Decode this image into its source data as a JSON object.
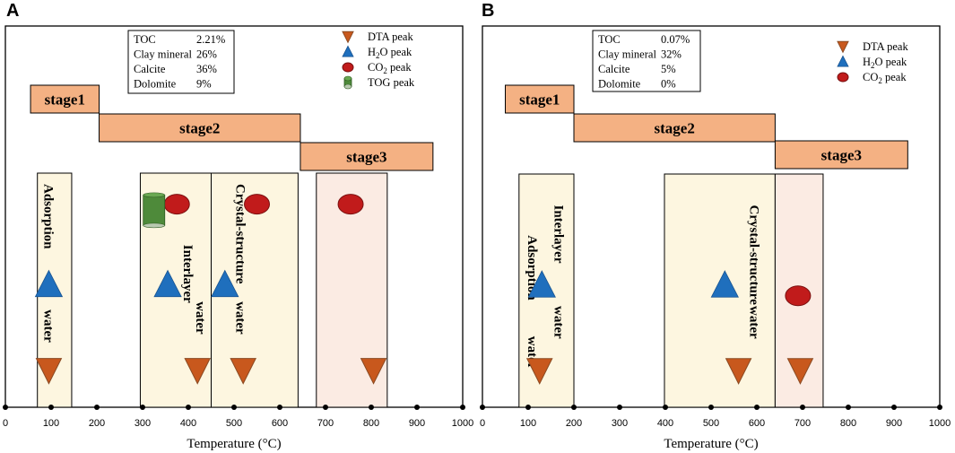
{
  "colors": {
    "dta": "#c8581d",
    "dta_stroke": "#8a4a22",
    "h2o": "#1f6fbd",
    "co2": "#c11b1b",
    "co2_stroke": "#7a1010",
    "tog": "#4e8a3a",
    "stage_fill": "#f4b183",
    "zone_light": "#fdf6e0",
    "zone_pink": "#fbebe3"
  },
  "chart_data": [
    {
      "panel": "A",
      "type": "diagram",
      "xlabel": "Temperature (°C)",
      "xlim": [
        0,
        1000
      ],
      "ticks": [
        "0",
        "100",
        "200",
        "300",
        "400",
        "500",
        "600",
        "700",
        "800",
        "900",
        "1000"
      ],
      "info": [
        {
          "label": "TOC",
          "value": "2.21%"
        },
        {
          "label": "Clay mineral",
          "value": "26%"
        },
        {
          "label": "Calcite",
          "value": "36%"
        },
        {
          "label": "Dolomite",
          "value": "9%"
        }
      ],
      "legend": [
        {
          "symbol": "dta",
          "text": "DTA peak"
        },
        {
          "symbol": "h2o",
          "text": "H",
          "sub": "2",
          "tail": "O peak"
        },
        {
          "symbol": "co2",
          "text": "CO",
          "sub": "2",
          "tail": " peak"
        },
        {
          "symbol": "tog",
          "text": "TOG peak"
        }
      ],
      "stages": [
        {
          "label": "stage1",
          "start": 55,
          "end": 205
        },
        {
          "label": "stage2",
          "start": 205,
          "end": 645
        },
        {
          "label": "stage3",
          "start": 645,
          "end": 935
        }
      ],
      "zones": [
        {
          "start": 70,
          "end": 145,
          "style": "light"
        },
        {
          "start": 295,
          "end": 450,
          "style": "light"
        },
        {
          "start": 450,
          "end": 640,
          "style": "light"
        },
        {
          "start": 680,
          "end": 835,
          "style": "pink"
        }
      ],
      "labels": [
        {
          "temp": 85,
          "level": 0.0,
          "text": "Adsorption"
        },
        {
          "temp": 85,
          "level": 0.62,
          "text": "water"
        },
        {
          "temp": 390,
          "level": 0.3,
          "text": "Interlayer"
        },
        {
          "temp": 418,
          "level": 0.58,
          "text": "water"
        },
        {
          "temp": 505,
          "level": 0.0,
          "text": "Crystal-structure"
        },
        {
          "temp": 505,
          "level": 0.58,
          "text": "water"
        }
      ],
      "markers": [
        {
          "type": "dta",
          "temp": 95,
          "level": 0.92
        },
        {
          "type": "dta",
          "temp": 420,
          "level": 0.92
        },
        {
          "type": "dta",
          "temp": 520,
          "level": 0.92
        },
        {
          "type": "dta",
          "temp": 805,
          "level": 0.92
        },
        {
          "type": "h2o",
          "temp": 95,
          "level": 0.5
        },
        {
          "type": "h2o",
          "temp": 355,
          "level": 0.5
        },
        {
          "type": "h2o",
          "temp": 480,
          "level": 0.5
        },
        {
          "type": "co2",
          "temp": 375,
          "level": 0.1
        },
        {
          "type": "co2",
          "temp": 550,
          "level": 0.1
        },
        {
          "type": "co2",
          "temp": 755,
          "level": 0.1
        },
        {
          "type": "tog",
          "temp": 325,
          "level": 0.13
        }
      ]
    },
    {
      "panel": "B",
      "type": "diagram",
      "xlabel": "Temperature (°C)",
      "xlim": [
        0,
        1000
      ],
      "ticks": [
        "0",
        "100",
        "200",
        "300",
        "400",
        "500",
        "600",
        "700",
        "800",
        "900",
        "1000"
      ],
      "info": [
        {
          "label": "TOC",
          "value": "0.07%"
        },
        {
          "label": "Clay mineral",
          "value": "32%"
        },
        {
          "label": "Calcite",
          "value": "5%"
        },
        {
          "label": "Dolomite",
          "value": "0%"
        }
      ],
      "legend": [
        {
          "symbol": "dta",
          "text": "DTA peak"
        },
        {
          "symbol": "h2o",
          "text": "H",
          "sub": "2",
          "tail": "O peak"
        },
        {
          "symbol": "co2",
          "text": "CO",
          "sub": "2",
          "tail": " peak"
        }
      ],
      "stages": [
        {
          "label": "stage1",
          "start": 50,
          "end": 200
        },
        {
          "label": "stage2",
          "start": 200,
          "end": 640
        },
        {
          "label": "stage3",
          "start": 640,
          "end": 930
        }
      ],
      "zones": [
        {
          "start": 80,
          "end": 200,
          "style": "light"
        },
        {
          "start": 398,
          "end": 640,
          "style": "light"
        },
        {
          "start": 640,
          "end": 745,
          "style": "pink"
        }
      ],
      "labels": [
        {
          "temp": 100,
          "level": 0.25,
          "text": "Adsorption"
        },
        {
          "temp": 100,
          "level": 0.75,
          "text": "water"
        },
        {
          "temp": 158,
          "level": 0.1,
          "text": "Interlayer"
        },
        {
          "temp": 158,
          "level": 0.6,
          "text": "water"
        },
        {
          "temp": 585,
          "level": 0.1,
          "text": "Crystal-structure"
        },
        {
          "temp": 585,
          "level": 0.6,
          "text": "water"
        }
      ],
      "markers": [
        {
          "type": "dta",
          "temp": 125,
          "level": 0.92
        },
        {
          "type": "dta",
          "temp": 560,
          "level": 0.92
        },
        {
          "type": "dta",
          "temp": 695,
          "level": 0.92
        },
        {
          "type": "h2o",
          "temp": 130,
          "level": 0.5
        },
        {
          "type": "h2o",
          "temp": 530,
          "level": 0.5
        },
        {
          "type": "co2",
          "temp": 690,
          "level": 0.55
        }
      ]
    }
  ],
  "panels": {
    "a_label": "A",
    "b_label": "B"
  }
}
